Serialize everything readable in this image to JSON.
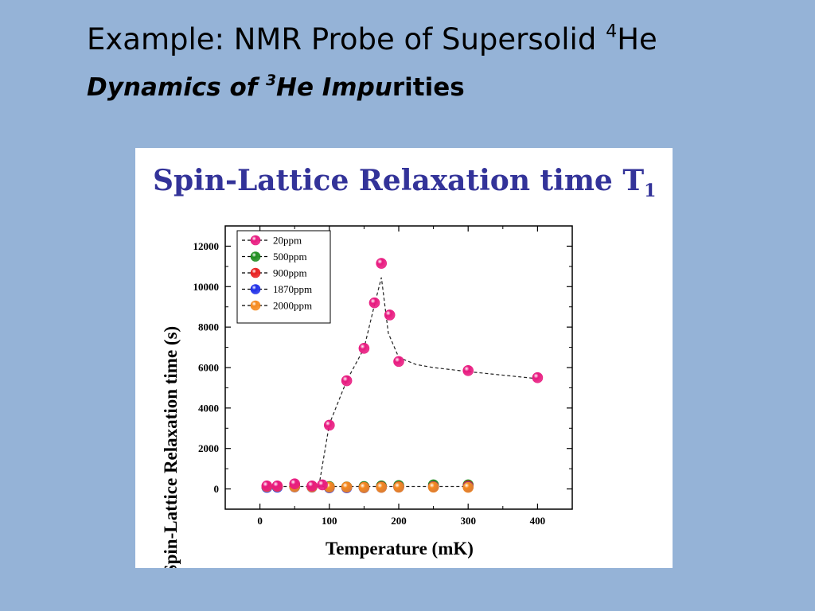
{
  "slide": {
    "title_main": "Example: NMR Probe of Supersolid ",
    "title_sup": "4",
    "title_end": "He",
    "subtitle_part1": "Dynamics of ",
    "subtitle_sup": "3",
    "subtitle_part2": "He Impu",
    "subtitle_part3": "rities",
    "background_color": "#95b3d7"
  },
  "chart_data": {
    "type": "scatter",
    "title": "Spin-Lattice Relaxation time T",
    "title_subscript": "1",
    "xlabel": "Temperature (mK)",
    "ylabel": "Spin-Lattice Relaxation time (s)",
    "xlim": [
      -50,
      450
    ],
    "ylim": [
      -1000,
      13000
    ],
    "xticks": [
      0,
      100,
      200,
      300,
      400
    ],
    "yticks": [
      0,
      2000,
      4000,
      6000,
      8000,
      10000,
      12000
    ],
    "grid": false,
    "legend_position": "top-left",
    "series": [
      {
        "name": "20ppm",
        "color": "#e8197f",
        "x": [
          10,
          25,
          50,
          75,
          90,
          100,
          125,
          150,
          165,
          175,
          187,
          200,
          300,
          400
        ],
        "y": [
          150,
          150,
          250,
          150,
          200,
          3150,
          5350,
          6950,
          9200,
          11150,
          8600,
          6300,
          5850,
          5500
        ]
      },
      {
        "name": "500ppm",
        "color": "#1e8c1e",
        "x": [
          10,
          25,
          50,
          75,
          100,
          125,
          150,
          175,
          200,
          250,
          300
        ],
        "y": [
          100,
          120,
          150,
          130,
          120,
          100,
          120,
          150,
          170,
          200,
          200
        ]
      },
      {
        "name": "900ppm",
        "color": "#e81e1e",
        "x": [
          10,
          25,
          50,
          75,
          100,
          125,
          150,
          175,
          200,
          250,
          300
        ],
        "y": [
          100,
          100,
          120,
          110,
          90,
          90,
          80,
          100,
          110,
          120,
          150
        ]
      },
      {
        "name": "1870ppm",
        "color": "#1e2ee8",
        "x": [
          10,
          25,
          50,
          75,
          100,
          125,
          150,
          175,
          200,
          250,
          300
        ],
        "y": [
          80,
          90,
          100,
          90,
          60,
          60,
          60,
          80,
          90,
          100,
          100
        ]
      },
      {
        "name": "2000ppm",
        "color": "#f5891e",
        "x": [
          10,
          25,
          50,
          75,
          100,
          125,
          150,
          175,
          200,
          250,
          300
        ],
        "y": [
          120,
          130,
          110,
          100,
          90,
          90,
          70,
          80,
          90,
          90,
          80
        ]
      }
    ],
    "fit_curve": {
      "x": [
        85,
        100,
        125,
        150,
        165,
        175,
        185,
        200,
        225,
        250,
        300,
        400
      ],
      "y": [
        150,
        3200,
        5350,
        6950,
        9100,
        10450,
        7700,
        6500,
        6150,
        6000,
        5800,
        5450
      ]
    },
    "baseline_curve": {
      "x": [
        10,
        300
      ],
      "y": [
        120,
        120
      ]
    }
  }
}
